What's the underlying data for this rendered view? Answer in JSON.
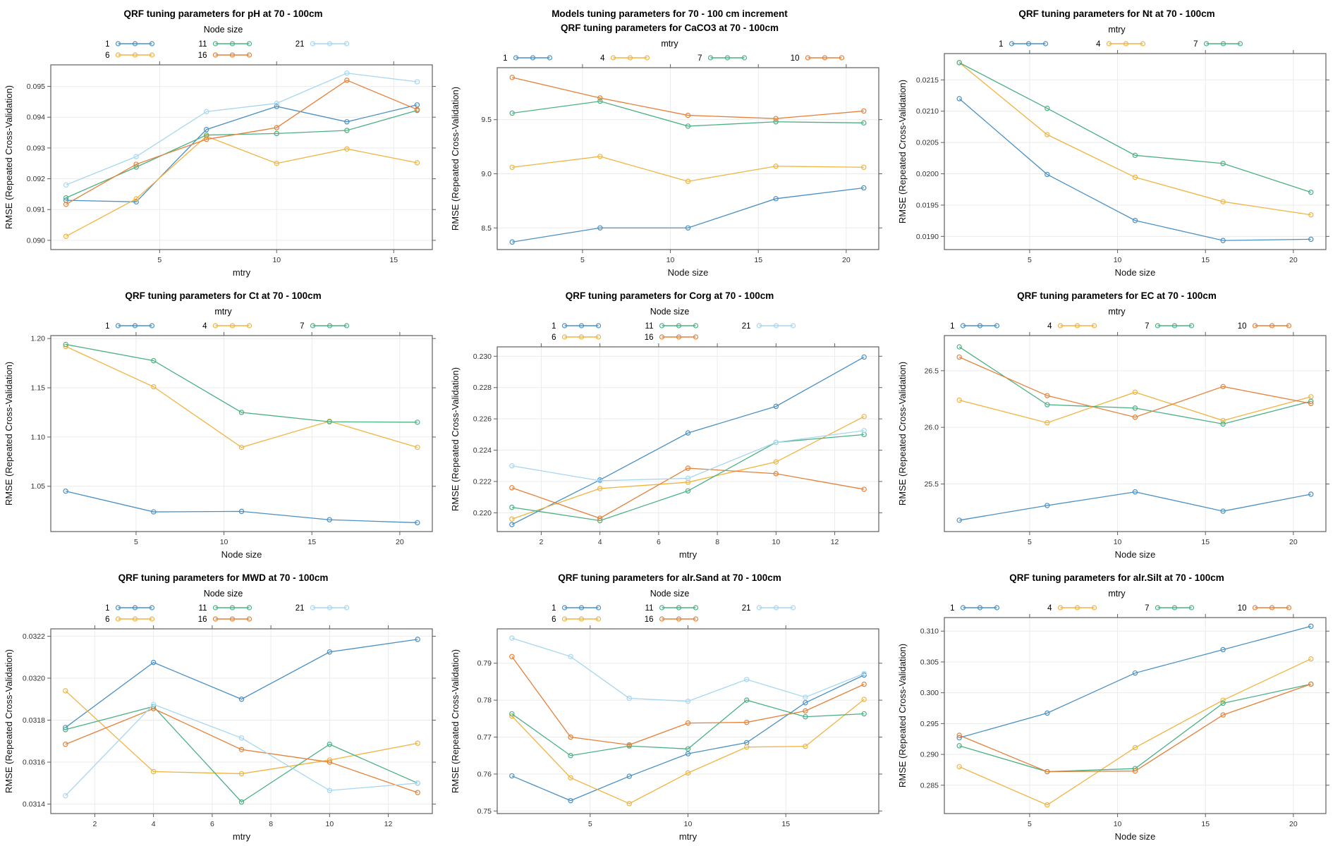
{
  "figure": {
    "ylabel": "RMSE (Repeated Cross-Validation)",
    "background": "#ffffff",
    "grid_color": "#ebebeb",
    "box_color": "#5f5f5f",
    "tick_color": "#5f5f5f",
    "palette": [
      "#4a90c4",
      "#f0b440",
      "#4bb183",
      "#e5813a",
      "#a6d6f0"
    ]
  },
  "chart_data": [
    {
      "key": "ph",
      "type": "line",
      "title_lines": [
        "QRF tuning parameters for pH at 70 - 100cm"
      ],
      "legend_title": "Node size",
      "legend_columns": 3,
      "xlabel": "mtry",
      "ylabel": "RMSE (Repeated Cross-Validation)",
      "x": [
        1,
        4,
        7,
        10,
        13,
        16
      ],
      "xlim": [
        0.35,
        16.65
      ],
      "x_ticks": [
        5,
        10,
        15
      ],
      "ylim": [
        0.0897,
        0.0957
      ],
      "y_tick_values": [
        0.09,
        0.091,
        0.092,
        0.093,
        0.094,
        0.095
      ],
      "y_tick_labels": [
        "0.090",
        "0.091",
        "0.092",
        "0.093",
        "0.094",
        "0.095"
      ],
      "series": [
        {
          "name": "1",
          "color": "#4a90c4",
          "values": [
            0.0913,
            0.09125,
            0.0936,
            0.09435,
            0.09385,
            0.0944
          ]
        },
        {
          "name": "6",
          "color": "#f0b440",
          "values": [
            0.09013,
            0.09135,
            0.09338,
            0.0925,
            0.09297,
            0.09252
          ]
        },
        {
          "name": "11",
          "color": "#4bb183",
          "values": [
            0.09138,
            0.09238,
            0.09342,
            0.09347,
            0.09357,
            0.09422
          ]
        },
        {
          "name": "16",
          "color": "#e5813a",
          "values": [
            0.09117,
            0.09247,
            0.09328,
            0.09366,
            0.0952,
            0.09425
          ]
        },
        {
          "name": "21",
          "color": "#a6d6f0",
          "values": [
            0.0918,
            0.09272,
            0.09418,
            0.09445,
            0.09543,
            0.09515
          ]
        }
      ]
    },
    {
      "key": "caco3",
      "type": "line",
      "title_lines": [
        "Models tuning parameters for 70 - 100 cm increment",
        "QRF tuning parameters for CaCO3 at 70 - 100cm"
      ],
      "legend_title": "mtry",
      "legend_columns": 4,
      "xlabel": "Node size",
      "ylabel": "RMSE (Repeated Cross-Validation)",
      "x": [
        1,
        6,
        11,
        16,
        21
      ],
      "xlim": [
        0.15,
        21.85
      ],
      "x_ticks": [
        5,
        10,
        15,
        20
      ],
      "ylim": [
        8.3,
        9.98
      ],
      "y_tick_values": [
        8.5,
        9.0,
        9.5
      ],
      "y_tick_labels": [
        "8.5",
        "9.0",
        "9.5"
      ],
      "series": [
        {
          "name": "1",
          "color": "#4a90c4",
          "values": [
            8.37,
            8.5,
            8.5,
            8.77,
            8.87
          ]
        },
        {
          "name": "4",
          "color": "#f0b440",
          "values": [
            9.06,
            9.16,
            8.93,
            9.07,
            9.06
          ]
        },
        {
          "name": "7",
          "color": "#4bb183",
          "values": [
            9.56,
            9.67,
            9.44,
            9.48,
            9.47
          ]
        },
        {
          "name": "10",
          "color": "#e5813a",
          "values": [
            9.89,
            9.7,
            9.54,
            9.51,
            9.58
          ]
        }
      ]
    },
    {
      "key": "nt",
      "type": "line",
      "title_lines": [
        "QRF tuning parameters for Nt at 70 - 100cm"
      ],
      "legend_title": "mtry",
      "legend_columns": 3,
      "xlabel": "Node size",
      "ylabel": "RMSE (Repeated Cross-Validation)",
      "x": [
        1,
        6,
        11,
        16,
        21
      ],
      "xlim": [
        0.15,
        21.85
      ],
      "x_ticks": [
        5,
        10,
        15,
        20
      ],
      "ylim": [
        0.01879,
        0.02192
      ],
      "y_tick_values": [
        0.019,
        0.0195,
        0.02,
        0.0205,
        0.021,
        0.0215
      ],
      "y_tick_labels": [
        "0.0190",
        "0.0195",
        "0.0200",
        "0.0205",
        "0.0210",
        "0.0215"
      ],
      "series": [
        {
          "name": "1",
          "color": "#4a90c4",
          "values": [
            0.0212,
            0.01999,
            0.019255,
            0.018935,
            0.018955
          ]
        },
        {
          "name": "4",
          "color": "#f0b440",
          "values": [
            0.021775,
            0.020625,
            0.019945,
            0.019555,
            0.019345
          ]
        },
        {
          "name": "7",
          "color": "#4bb183",
          "values": [
            0.021775,
            0.021045,
            0.020295,
            0.020165,
            0.019705
          ]
        }
      ]
    },
    {
      "key": "ct",
      "type": "line",
      "title_lines": [
        "QRF tuning parameters for Ct at 70 - 100cm"
      ],
      "legend_title": "mtry",
      "legend_columns": 3,
      "xlabel": "Node size",
      "ylabel": "RMSE (Repeated Cross-Validation)",
      "x": [
        1,
        6,
        11,
        16,
        21
      ],
      "xlim": [
        0.15,
        21.85
      ],
      "x_ticks": [
        5,
        10,
        15,
        20
      ],
      "ylim": [
        1.004,
        1.203
      ],
      "y_tick_values": [
        1.05,
        1.1,
        1.15,
        1.2
      ],
      "y_tick_labels": [
        "1.05",
        "1.10",
        "1.15",
        "1.20"
      ],
      "series": [
        {
          "name": "1",
          "color": "#4a90c4",
          "values": [
            1.045,
            1.024,
            1.0245,
            1.016,
            1.013
          ]
        },
        {
          "name": "4",
          "color": "#f0b440",
          "values": [
            1.192,
            1.151,
            1.0895,
            1.116,
            1.0895
          ]
        },
        {
          "name": "7",
          "color": "#4bb183",
          "values": [
            1.194,
            1.1775,
            1.125,
            1.1155,
            1.115
          ]
        }
      ]
    },
    {
      "key": "corg",
      "type": "line",
      "title_lines": [
        "QRF tuning parameters for Corg at 70 - 100cm"
      ],
      "legend_title": "Node size",
      "legend_columns": 3,
      "xlabel": "mtry",
      "ylabel": "RMSE (Repeated Cross-Validation)",
      "x": [
        1,
        4,
        7,
        10,
        13
      ],
      "xlim": [
        0.5,
        13.5
      ],
      "x_ticks": [
        2,
        4,
        6,
        8,
        10,
        12
      ],
      "ylim": [
        0.2188,
        0.2306
      ],
      "y_tick_values": [
        0.22,
        0.222,
        0.224,
        0.226,
        0.228,
        0.23
      ],
      "y_tick_labels": [
        "0.220",
        "0.222",
        "0.224",
        "0.226",
        "0.228",
        "0.230"
      ],
      "series": [
        {
          "name": "1",
          "color": "#4a90c4",
          "values": [
            0.21925,
            0.2221,
            0.2251,
            0.2268,
            0.22995
          ]
        },
        {
          "name": "6",
          "color": "#f0b440",
          "values": [
            0.2196,
            0.22155,
            0.22195,
            0.22325,
            0.22615
          ]
        },
        {
          "name": "11",
          "color": "#4bb183",
          "values": [
            0.22035,
            0.2195,
            0.2214,
            0.2245,
            0.225
          ]
        },
        {
          "name": "16",
          "color": "#e5813a",
          "values": [
            0.2216,
            0.21965,
            0.22285,
            0.2225,
            0.2215
          ]
        },
        {
          "name": "21",
          "color": "#a6d6f0",
          "values": [
            0.223,
            0.22205,
            0.2222,
            0.2245,
            0.22525
          ]
        }
      ]
    },
    {
      "key": "ec",
      "type": "line",
      "title_lines": [
        "QRF tuning parameters for EC at 70 - 100cm"
      ],
      "legend_title": "mtry",
      "legend_columns": 4,
      "xlabel": "Node size",
      "ylabel": "RMSE (Repeated Cross-Validation)",
      "x": [
        1,
        6,
        11,
        16,
        21
      ],
      "xlim": [
        0.15,
        21.85
      ],
      "x_ticks": [
        5,
        10,
        15,
        20
      ],
      "ylim": [
        25.08,
        26.81
      ],
      "y_tick_values": [
        25.5,
        26.0,
        26.5
      ],
      "y_tick_labels": [
        "25.5",
        "26.0",
        "26.5"
      ],
      "series": [
        {
          "name": "1",
          "color": "#4a90c4",
          "values": [
            25.18,
            25.31,
            25.43,
            25.26,
            25.41
          ]
        },
        {
          "name": "4",
          "color": "#f0b440",
          "values": [
            26.24,
            26.04,
            26.31,
            26.06,
            26.27
          ]
        },
        {
          "name": "7",
          "color": "#4bb183",
          "values": [
            26.71,
            26.2,
            26.17,
            26.03,
            26.23
          ]
        },
        {
          "name": "10",
          "color": "#e5813a",
          "values": [
            26.62,
            26.28,
            26.09,
            26.36,
            26.21
          ]
        }
      ]
    },
    {
      "key": "mwd",
      "type": "line",
      "title_lines": [
        "QRF tuning parameters for MWD at 70 - 100cm"
      ],
      "legend_title": "Node size",
      "legend_columns": 3,
      "xlabel": "mtry",
      "ylabel": "RMSE (Repeated Cross-Validation)",
      "x": [
        1,
        4,
        7,
        10,
        13
      ],
      "xlim": [
        0.5,
        13.5
      ],
      "x_ticks": [
        2,
        4,
        6,
        8,
        10,
        12
      ],
      "ylim": [
        0.031355,
        0.032235
      ],
      "y_tick_values": [
        0.0314,
        0.0316,
        0.0318,
        0.032,
        0.0322
      ],
      "y_tick_labels": [
        "0.0314",
        "0.0316",
        "0.0318",
        "0.0320",
        "0.0322"
      ],
      "series": [
        {
          "name": "1",
          "color": "#4a90c4",
          "values": [
            0.031765,
            0.032075,
            0.0319,
            0.032125,
            0.032185
          ]
        },
        {
          "name": "6",
          "color": "#f0b440",
          "values": [
            0.03194,
            0.031555,
            0.031545,
            0.03161,
            0.03169
          ]
        },
        {
          "name": "11",
          "color": "#4bb183",
          "values": [
            0.031755,
            0.031865,
            0.03141,
            0.031685,
            0.0315
          ]
        },
        {
          "name": "16",
          "color": "#e5813a",
          "values": [
            0.031685,
            0.031855,
            0.03166,
            0.0316,
            0.031455
          ]
        },
        {
          "name": "21",
          "color": "#a6d6f0",
          "values": [
            0.03144,
            0.031875,
            0.031715,
            0.031465,
            0.0315
          ]
        }
      ]
    },
    {
      "key": "alr-sand",
      "type": "line",
      "title_lines": [
        "QRF tuning parameters for alr.Sand at 70 - 100cm"
      ],
      "legend_title": "Node size",
      "legend_columns": 3,
      "xlabel": "mtry",
      "ylabel": "RMSE (Repeated Cross-Validation)",
      "x": [
        1,
        4,
        7,
        10,
        13,
        16,
        19
      ],
      "xlim": [
        0.25,
        19.75
      ],
      "x_ticks": [
        5,
        10,
        15
      ],
      "ylim": [
        0.7493,
        0.7993
      ],
      "y_tick_values": [
        0.75,
        0.76,
        0.77,
        0.78,
        0.79
      ],
      "y_tick_labels": [
        "0.75",
        "0.76",
        "0.77",
        "0.78",
        "0.79"
      ],
      "series": [
        {
          "name": "1",
          "color": "#4a90c4",
          "values": [
            0.7595,
            0.7528,
            0.7594,
            0.7655,
            0.7685,
            0.7793,
            0.7868
          ]
        },
        {
          "name": "6",
          "color": "#f0b440",
          "values": [
            0.7757,
            0.759,
            0.752,
            0.7603,
            0.7673,
            0.7675,
            0.7802
          ]
        },
        {
          "name": "11",
          "color": "#4bb183",
          "values": [
            0.7763,
            0.765,
            0.7676,
            0.7668,
            0.78,
            0.7755,
            0.7763
          ]
        },
        {
          "name": "16",
          "color": "#e5813a",
          "values": [
            0.7918,
            0.77,
            0.7679,
            0.7738,
            0.774,
            0.7771,
            0.7843
          ]
        },
        {
          "name": "21",
          "color": "#a6d6f0",
          "values": [
            0.7968,
            0.7918,
            0.7805,
            0.7797,
            0.7856,
            0.7808,
            0.7872
          ]
        }
      ]
    },
    {
      "key": "alr-silt",
      "type": "line",
      "title_lines": [
        "QRF tuning parameters for alr.Silt at 70 - 100cm"
      ],
      "legend_title": "mtry",
      "legend_columns": 4,
      "xlabel": "Node size",
      "ylabel": "RMSE (Repeated Cross-Validation)",
      "x": [
        1,
        6,
        11,
        16,
        21
      ],
      "xlim": [
        0.15,
        21.85
      ],
      "x_ticks": [
        5,
        10,
        15,
        20
      ],
      "ylim": [
        0.2804,
        0.3122
      ],
      "y_tick_values": [
        0.285,
        0.29,
        0.295,
        0.3,
        0.305,
        0.31
      ],
      "y_tick_labels": [
        "0.285",
        "0.290",
        "0.295",
        "0.300",
        "0.305",
        "0.310"
      ],
      "series": [
        {
          "name": "1",
          "color": "#4a90c4",
          "values": [
            0.2927,
            0.2967,
            0.3032,
            0.307,
            0.3108
          ]
        },
        {
          "name": "4",
          "color": "#f0b440",
          "values": [
            0.288,
            0.2818,
            0.2911,
            0.2988,
            0.3055
          ]
        },
        {
          "name": "7",
          "color": "#4bb183",
          "values": [
            0.2914,
            0.2872,
            0.2877,
            0.2983,
            0.3014
          ]
        },
        {
          "name": "10",
          "color": "#e5813a",
          "values": [
            0.2931,
            0.2872,
            0.2873,
            0.2964,
            0.3014
          ]
        }
      ]
    }
  ]
}
